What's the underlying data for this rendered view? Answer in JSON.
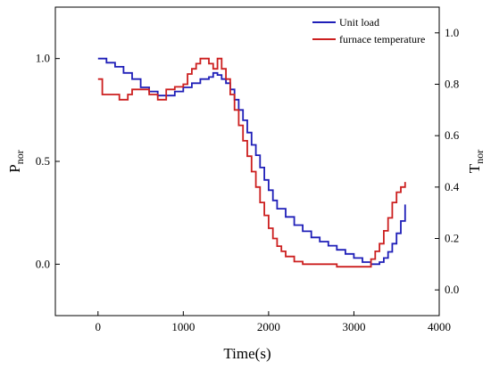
{
  "chart_data": {
    "type": "line",
    "xlabel": "Time(s)",
    "ylabel_left": {
      "main": "P",
      "sub": "nor"
    },
    "ylabel_right": {
      "main": "T",
      "sub": "nor"
    },
    "xlim": [
      -500,
      4000
    ],
    "ylim_left": [
      -0.25,
      1.25
    ],
    "ylim_right": [
      -0.1,
      1.1
    ],
    "x_ticks": [
      0,
      1000,
      2000,
      3000,
      4000
    ],
    "x_tick_labels": [
      "0",
      "1000",
      "2000",
      "3000",
      "4000"
    ],
    "y_left_ticks": [
      0.0,
      0.5,
      1.0
    ],
    "y_left_tick_labels": [
      "0.0",
      "0.5",
      "1.0"
    ],
    "y_right_ticks": [
      0.0,
      0.2,
      0.4,
      0.6,
      0.8,
      1.0
    ],
    "y_right_tick_labels": [
      "0.0",
      "0.2",
      "0.4",
      "0.6",
      "0.8",
      "1.0"
    ],
    "legend_position": "top-right",
    "grid": false,
    "series": [
      {
        "name": "Unit load",
        "color": "#1f1fb8",
        "axis": "left",
        "x": [
          0,
          100,
          200,
          300,
          400,
          500,
          600,
          700,
          800,
          900,
          1000,
          1100,
          1200,
          1300,
          1350,
          1400,
          1450,
          1500,
          1550,
          1600,
          1650,
          1700,
          1750,
          1800,
          1850,
          1900,
          1950,
          2000,
          2050,
          2100,
          2200,
          2300,
          2400,
          2500,
          2600,
          2700,
          2800,
          2900,
          3000,
          3100,
          3200,
          3300,
          3350,
          3400,
          3450,
          3500,
          3550,
          3600
        ],
        "y": [
          1.0,
          0.98,
          0.96,
          0.93,
          0.9,
          0.86,
          0.84,
          0.82,
          0.82,
          0.84,
          0.86,
          0.88,
          0.9,
          0.91,
          0.93,
          0.92,
          0.9,
          0.88,
          0.85,
          0.8,
          0.75,
          0.7,
          0.64,
          0.58,
          0.53,
          0.47,
          0.41,
          0.36,
          0.31,
          0.27,
          0.23,
          0.19,
          0.16,
          0.13,
          0.11,
          0.09,
          0.07,
          0.05,
          0.03,
          0.01,
          0.0,
          0.01,
          0.03,
          0.06,
          0.1,
          0.15,
          0.21,
          0.29
        ]
      },
      {
        "name": "furnace temperature",
        "color": "#cc1f1f",
        "axis": "right",
        "x": [
          0,
          50,
          150,
          250,
          350,
          400,
          500,
          600,
          700,
          800,
          900,
          1000,
          1050,
          1100,
          1150,
          1200,
          1250,
          1300,
          1350,
          1400,
          1450,
          1500,
          1550,
          1600,
          1650,
          1700,
          1750,
          1800,
          1850,
          1900,
          1950,
          2000,
          2050,
          2100,
          2150,
          2200,
          2300,
          2400,
          2500,
          2600,
          2700,
          2800,
          2900,
          3000,
          3100,
          3200,
          3250,
          3300,
          3350,
          3400,
          3450,
          3500,
          3550,
          3600
        ],
        "y": [
          0.82,
          0.76,
          0.76,
          0.74,
          0.76,
          0.78,
          0.78,
          0.76,
          0.74,
          0.78,
          0.79,
          0.8,
          0.84,
          0.86,
          0.88,
          0.9,
          0.9,
          0.88,
          0.86,
          0.9,
          0.86,
          0.82,
          0.76,
          0.7,
          0.64,
          0.58,
          0.52,
          0.46,
          0.4,
          0.34,
          0.29,
          0.24,
          0.2,
          0.17,
          0.15,
          0.13,
          0.11,
          0.1,
          0.1,
          0.1,
          0.1,
          0.09,
          0.09,
          0.09,
          0.09,
          0.12,
          0.15,
          0.18,
          0.23,
          0.28,
          0.34,
          0.38,
          0.4,
          0.42
        ]
      }
    ]
  }
}
